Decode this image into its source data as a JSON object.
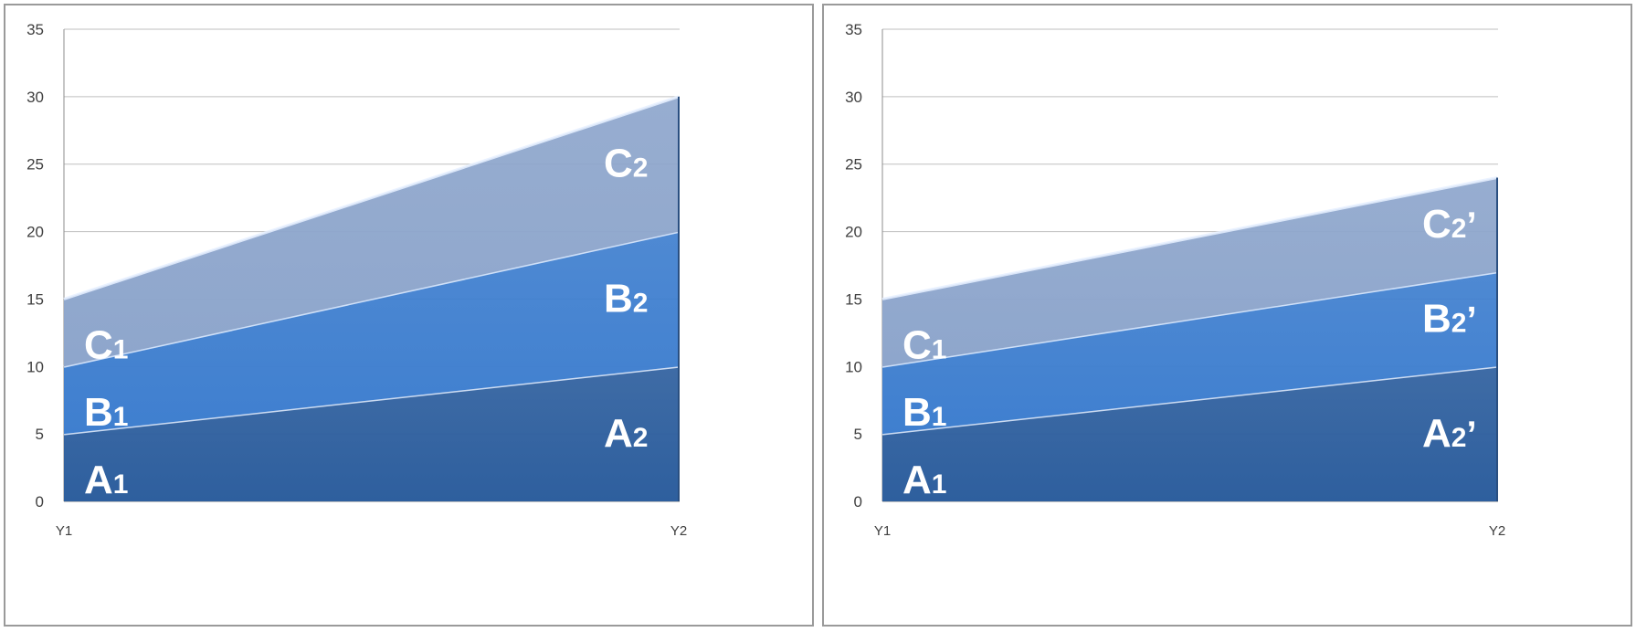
{
  "chart_data": [
    {
      "type": "area",
      "stacked": true,
      "categories": [
        "Y1",
        "Y2"
      ],
      "series": [
        {
          "name": "A",
          "values": [
            5,
            10
          ],
          "color": "#2e5f9e"
        },
        {
          "name": "B",
          "values": [
            5,
            10
          ],
          "color": "#3f7fcf"
        },
        {
          "name": "C",
          "values": [
            5,
            10
          ],
          "color": "#8ea6cc"
        }
      ],
      "ylim": [
        0,
        35
      ],
      "yticks": [
        "0",
        "5",
        "10",
        "15",
        "20",
        "25",
        "30",
        "35"
      ],
      "grid": true,
      "labels": [
        {
          "base": "A",
          "sub": "1",
          "suffix": "",
          "series": 0,
          "category": 0
        },
        {
          "base": "B",
          "sub": "1",
          "suffix": "",
          "series": 1,
          "category": 0
        },
        {
          "base": "C",
          "sub": "1",
          "suffix": "",
          "series": 2,
          "category": 0
        },
        {
          "base": "A",
          "sub": "2",
          "suffix": "",
          "series": 0,
          "category": 1
        },
        {
          "base": "B",
          "sub": "2",
          "suffix": "",
          "series": 1,
          "category": 1
        },
        {
          "base": "C",
          "sub": "2",
          "suffix": "",
          "series": 2,
          "category": 1
        }
      ]
    },
    {
      "type": "area",
      "stacked": true,
      "categories": [
        "Y1",
        "Y2"
      ],
      "series": [
        {
          "name": "A",
          "values": [
            5,
            10
          ],
          "color": "#2e5f9e"
        },
        {
          "name": "B",
          "values": [
            5,
            7
          ],
          "color": "#3f7fcf"
        },
        {
          "name": "C",
          "values": [
            5,
            7
          ],
          "color": "#8ea6cc"
        }
      ],
      "ylim": [
        0,
        35
      ],
      "yticks": [
        "0",
        "5",
        "10",
        "15",
        "20",
        "25",
        "30",
        "35"
      ],
      "grid": true,
      "labels": [
        {
          "base": "A",
          "sub": "1",
          "suffix": "",
          "series": 0,
          "category": 0
        },
        {
          "base": "B",
          "sub": "1",
          "suffix": "",
          "series": 1,
          "category": 0
        },
        {
          "base": "C",
          "sub": "1",
          "suffix": "",
          "series": 2,
          "category": 0
        },
        {
          "base": "A",
          "sub": "2",
          "suffix": "’",
          "series": 0,
          "category": 1
        },
        {
          "base": "B",
          "sub": "2",
          "suffix": "’",
          "series": 1,
          "category": 1
        },
        {
          "base": "C",
          "sub": "2",
          "suffix": "’",
          "series": 2,
          "category": 1
        }
      ]
    }
  ]
}
